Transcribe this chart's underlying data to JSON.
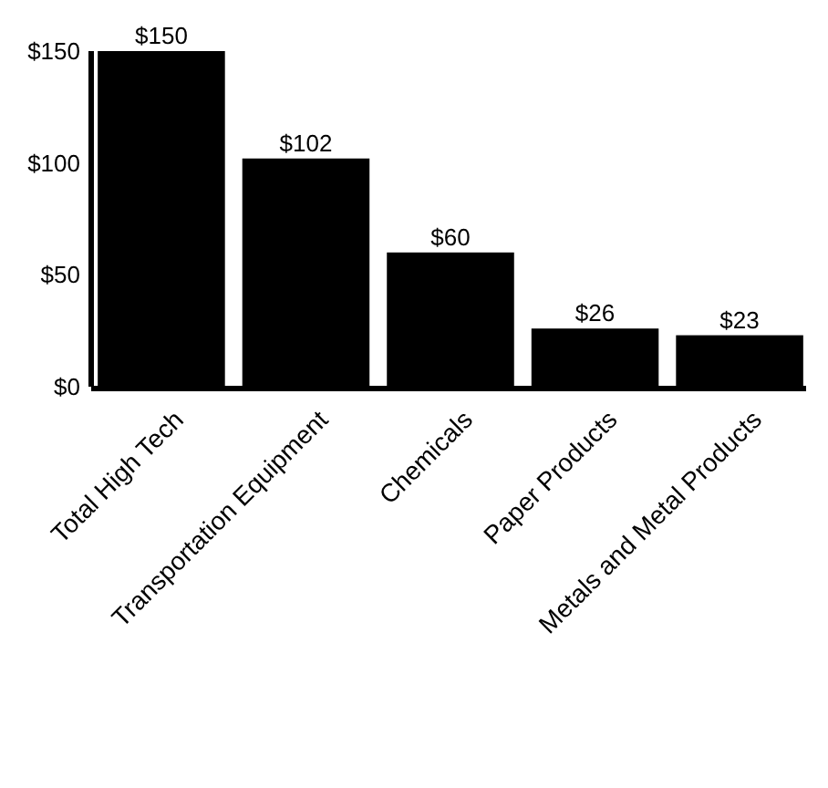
{
  "chart_data": {
    "type": "bar",
    "categories": [
      "Total High Tech",
      "Transportation Equipment",
      "Chemicals",
      "Paper Products",
      "Metals and Metal Products"
    ],
    "values": [
      150,
      102,
      60,
      26,
      23
    ],
    "value_labels": [
      "$150",
      "$102",
      "$60",
      "$26",
      "$23"
    ],
    "color": "#000000",
    "ylim": [
      0,
      150
    ],
    "yticks": [
      {
        "value": 0,
        "label": "$0"
      },
      {
        "value": 50,
        "label": "$50"
      },
      {
        "value": 100,
        "label": "$100"
      },
      {
        "value": 150,
        "label": "$150"
      }
    ],
    "grid": false
  }
}
